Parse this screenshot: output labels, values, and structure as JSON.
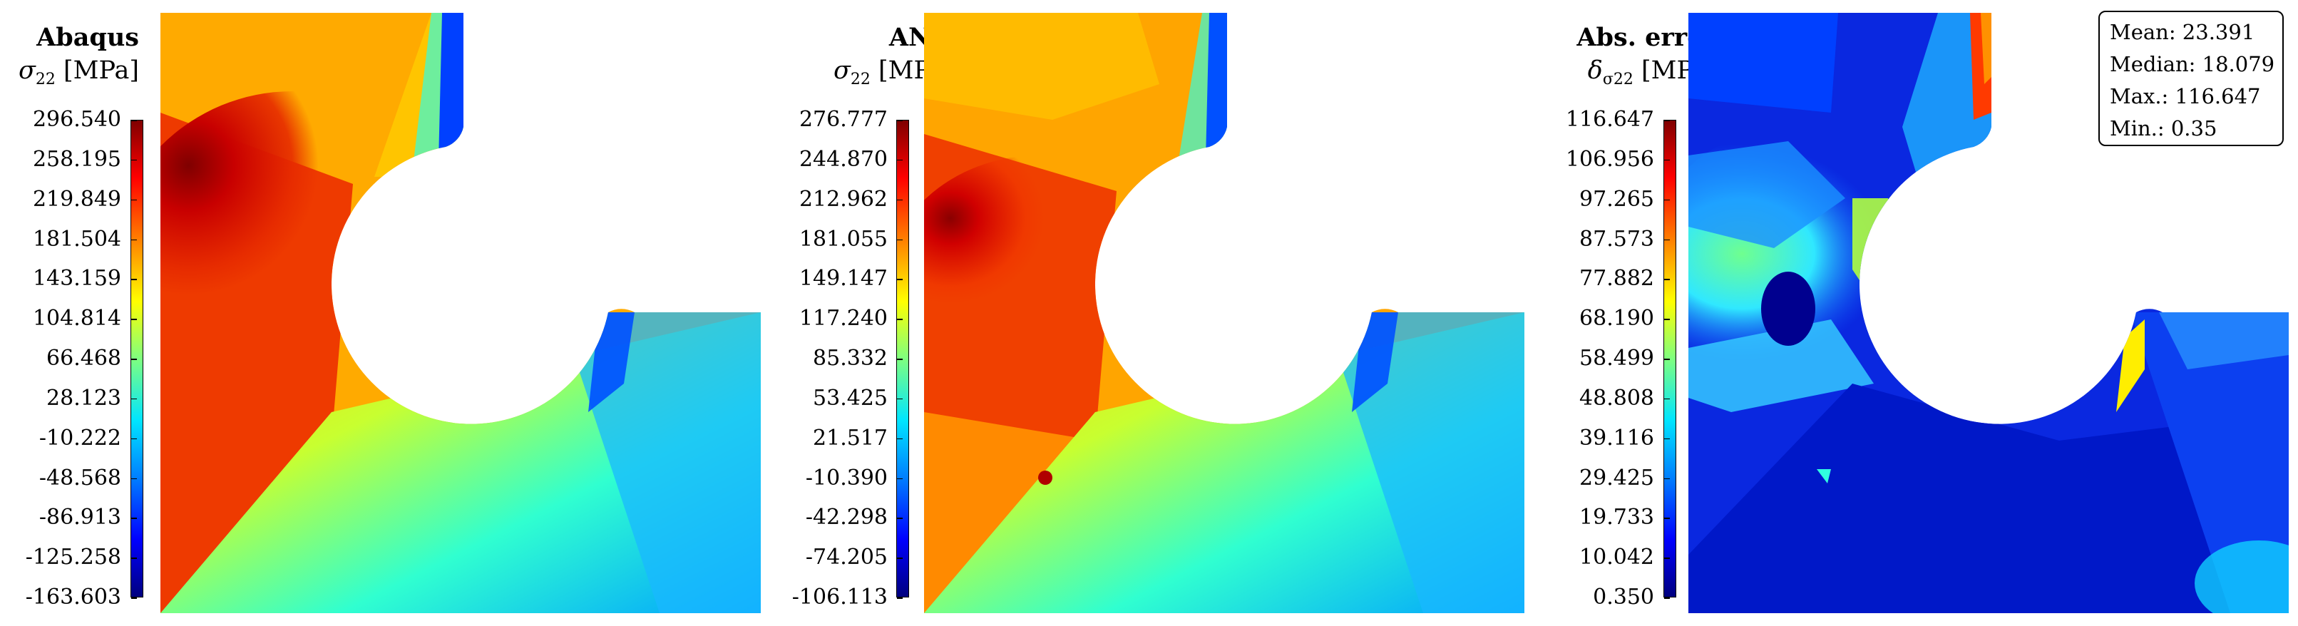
{
  "panels": [
    {
      "title": "Abaqus",
      "symbol": "σ",
      "subscript": "22",
      "unit": " [MPa]",
      "ticks": [
        "296.540",
        "258.195",
        "219.849",
        "181.504",
        "143.159",
        "104.814",
        "66.468",
        "28.123",
        "-10.222",
        "-48.568",
        "-86.913",
        "-125.258",
        "-163.603"
      ]
    },
    {
      "title": "ANN",
      "symbol": "σ",
      "subscript": "22",
      "unit": " [MPa]",
      "ticks": [
        "276.777",
        "244.870",
        "212.962",
        "181.055",
        "149.147",
        "117.240",
        "85.332",
        "53.425",
        "21.517",
        "-10.390",
        "-42.298",
        "-74.205",
        "-106.113"
      ]
    },
    {
      "title": "Abs. error",
      "symbol": "δ",
      "subscript": "σ22",
      "unit": " [MPa]",
      "ticks": [
        "116.647",
        "106.956",
        "97.265",
        "87.573",
        "77.882",
        "68.190",
        "58.499",
        "48.808",
        "39.116",
        "29.425",
        "19.733",
        "10.042",
        "0.350"
      ]
    }
  ],
  "stats": {
    "mean": "Mean: 23.391",
    "median": "Median: 18.079",
    "max": "Max.: 116.647",
    "min": "Min.: 0.35"
  },
  "colormap": "jet"
}
